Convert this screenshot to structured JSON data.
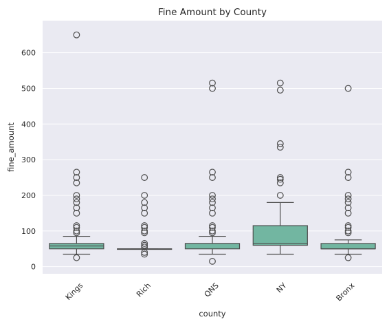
{
  "chart_data": {
    "type": "box",
    "title": "Fine Amount by County",
    "xlabel": "county",
    "ylabel": "fine_amount",
    "categories": [
      "Kings",
      "Rich",
      "QNS",
      "NY",
      "Bronx"
    ],
    "ylim": [
      -20,
      690
    ],
    "yticks": [
      0,
      100,
      200,
      300,
      400,
      500,
      600
    ],
    "grid": true,
    "box_color": "#72b6a1",
    "line_color": "#4d4d4d",
    "background_color": "#eaeaf2",
    "boxes": [
      {
        "category": "Kings",
        "whisker_low": 35,
        "q1": 50,
        "median": 58,
        "q3": 65,
        "whisker_high": 85,
        "outliers": [
          25,
          95,
          100,
          110,
          115,
          150,
          165,
          180,
          190,
          200,
          235,
          250,
          265,
          650
        ]
      },
      {
        "category": "Rich",
        "whisker_low": 50,
        "q1": 50,
        "median": 50,
        "q3": 50,
        "whisker_high": 50,
        "outliers": [
          35,
          40,
          55,
          60,
          65,
          95,
          100,
          110,
          115,
          150,
          165,
          180,
          200,
          250
        ]
      },
      {
        "category": "QNS",
        "whisker_low": 35,
        "q1": 50,
        "median": 65,
        "q3": 65,
        "whisker_high": 85,
        "outliers": [
          15,
          95,
          100,
          110,
          115,
          150,
          165,
          180,
          190,
          200,
          250,
          265,
          500,
          515
        ]
      },
      {
        "category": "NY",
        "whisker_low": 35,
        "q1": 60,
        "median": 65,
        "q3": 115,
        "whisker_high": 180,
        "outliers": [
          200,
          235,
          245,
          250,
          335,
          345,
          495,
          515
        ]
      },
      {
        "category": "Bronx",
        "whisker_low": 35,
        "q1": 50,
        "median": 50,
        "q3": 65,
        "whisker_high": 75,
        "outliers": [
          25,
          95,
          100,
          110,
          115,
          150,
          165,
          180,
          190,
          200,
          250,
          265,
          500
        ]
      }
    ]
  }
}
